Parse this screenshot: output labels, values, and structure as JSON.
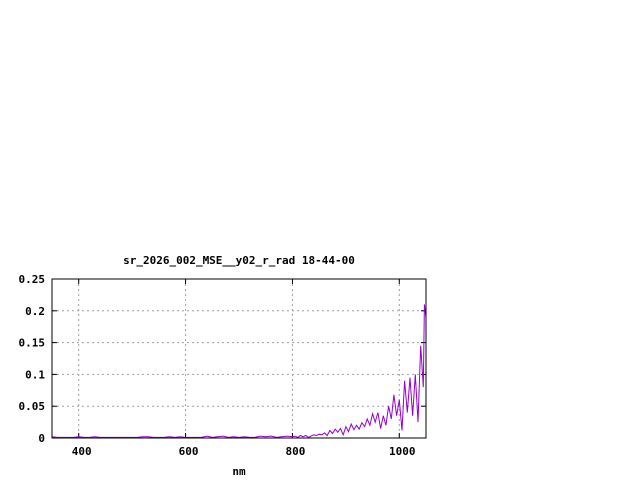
{
  "chart_data": {
    "type": "line",
    "title": "sr_2026_002_MSE__y02_r_rad 18-44-00",
    "xlabel": "nm",
    "ylabel": "",
    "xlim": [
      350,
      1050
    ],
    "ylim": [
      0,
      0.25
    ],
    "xticks": [
      400,
      600,
      800,
      1000
    ],
    "xtick_labels": [
      "400",
      "600",
      "800",
      "1000"
    ],
    "yticks": [
      0,
      0.05,
      0.1,
      0.15,
      0.2,
      0.25
    ],
    "ytick_labels": [
      "0",
      "0.05",
      "0.1",
      "0.15",
      "0.2",
      "0.25"
    ],
    "grid": true,
    "legend": "none",
    "series": [
      {
        "color": "#9400d3",
        "x": [
          350,
          360,
          370,
          380,
          390,
          400,
          410,
          420,
          430,
          440,
          450,
          460,
          470,
          480,
          490,
          500,
          510,
          520,
          530,
          540,
          550,
          560,
          570,
          580,
          590,
          600,
          610,
          620,
          630,
          640,
          650,
          660,
          670,
          680,
          690,
          700,
          710,
          720,
          730,
          740,
          750,
          760,
          770,
          780,
          790,
          800,
          805,
          810,
          815,
          820,
          825,
          830,
          835,
          840,
          845,
          850,
          855,
          860,
          865,
          870,
          875,
          880,
          885,
          890,
          895,
          900,
          905,
          910,
          915,
          920,
          925,
          930,
          935,
          940,
          945,
          950,
          955,
          960,
          965,
          970,
          975,
          980,
          985,
          990,
          995,
          1000,
          1005,
          1010,
          1015,
          1020,
          1025,
          1030,
          1035,
          1040,
          1045,
          1047,
          1050
        ],
        "y": [
          0.002,
          0.001,
          0.001,
          0.001,
          0.001,
          0.002,
          0.001,
          0.001,
          0.002,
          0.001,
          0.001,
          0.001,
          0.001,
          0.001,
          0.001,
          0.001,
          0.001,
          0.002,
          0.002,
          0.001,
          0.001,
          0.001,
          0.002,
          0.001,
          0.002,
          0.001,
          0.001,
          0.001,
          0.001,
          0.003,
          0.001,
          0.002,
          0.003,
          0.001,
          0.002,
          0.001,
          0.002,
          0.001,
          0.001,
          0.003,
          0.002,
          0.003,
          0.001,
          0.002,
          0.003,
          0.002,
          0.003,
          0.001,
          0.004,
          0.002,
          0.004,
          0.001,
          0.003,
          0.005,
          0.004,
          0.006,
          0.005,
          0.008,
          0.004,
          0.012,
          0.007,
          0.014,
          0.009,
          0.015,
          0.005,
          0.018,
          0.01,
          0.022,
          0.013,
          0.02,
          0.014,
          0.024,
          0.018,
          0.03,
          0.02,
          0.038,
          0.025,
          0.04,
          0.015,
          0.035,
          0.02,
          0.05,
          0.03,
          0.068,
          0.035,
          0.06,
          0.012,
          0.09,
          0.04,
          0.095,
          0.035,
          0.1,
          0.025,
          0.145,
          0.08,
          0.21,
          0.19
        ]
      }
    ]
  }
}
